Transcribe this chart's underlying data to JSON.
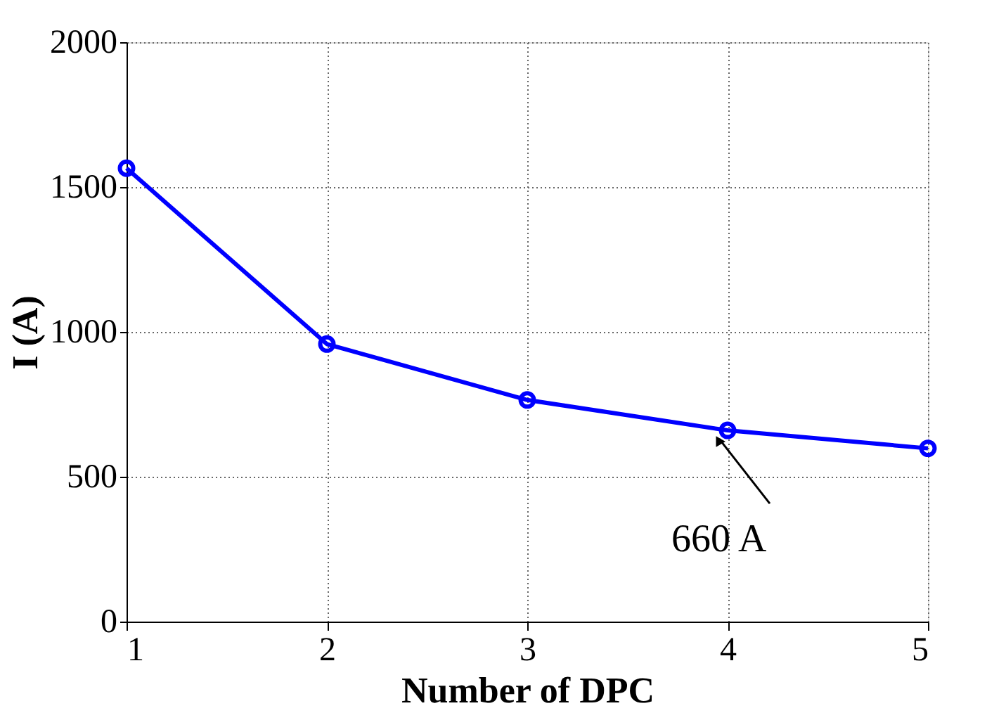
{
  "chart_data": {
    "type": "line",
    "xlabel": "Number of DPC",
    "ylabel": "I (A)",
    "x": [
      1,
      2,
      3,
      4,
      5
    ],
    "series": [
      {
        "color": "#0000ff",
        "values": [
          1565,
          958,
          765,
          660,
          598
        ]
      }
    ],
    "xlim": [
      1,
      5
    ],
    "xticks": [
      1,
      2,
      3,
      4,
      5
    ],
    "ylim": [
      0,
      2000
    ],
    "yticks": [
      0,
      500,
      1000,
      1500,
      2000
    ],
    "grid": true,
    "marker": "circle",
    "line_style": "solid",
    "annotations": [
      {
        "text": "660 A",
        "x": 4,
        "y": 660
      }
    ]
  }
}
